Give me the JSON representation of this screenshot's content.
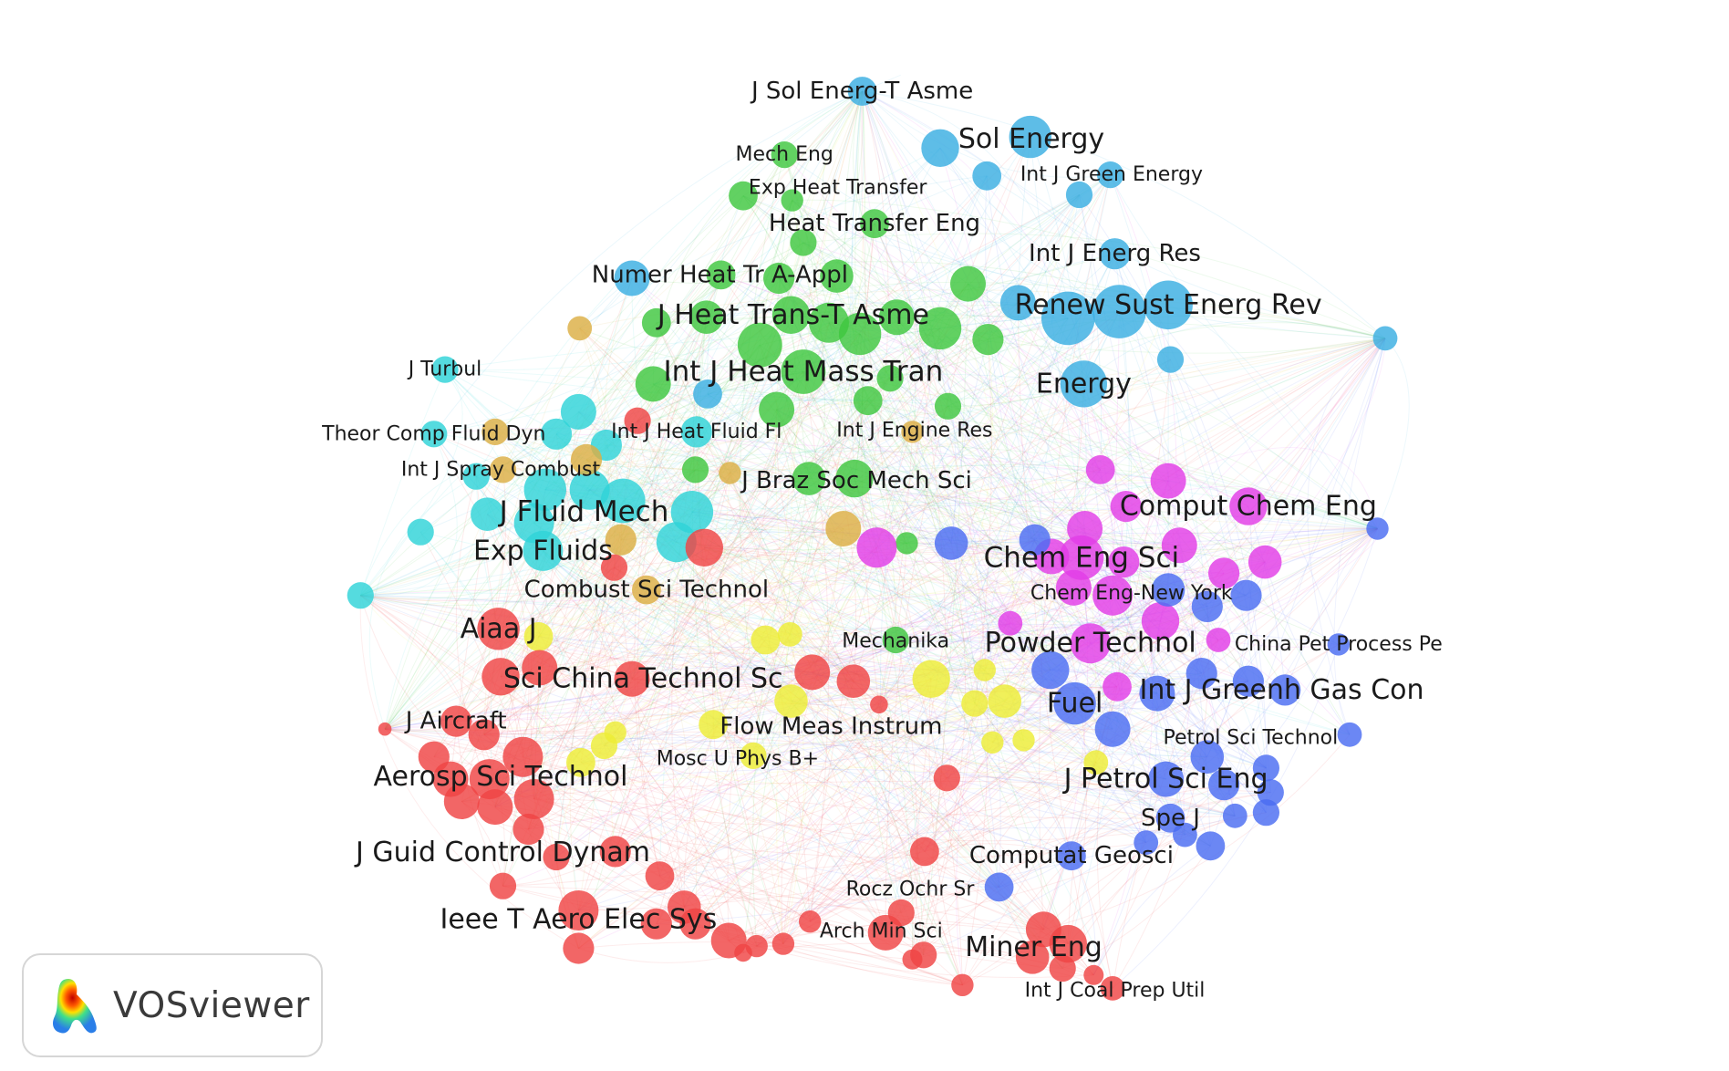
{
  "legend": {
    "brand": "VOSviewer"
  },
  "cluster_colors": {
    "red": "#ef4444",
    "green": "#3fc73f",
    "blue": "#4a6cf2",
    "yellow": "#eded36",
    "magenta": "#e23de6",
    "cyan": "#2fd3d8",
    "orange": "#dcae44",
    "lightblue": "#3aaee2"
  },
  "labels": [
    {
      "id": "j-sol-energ",
      "text": "J Sol Energ-T Asme",
      "cluster": "lightblue",
      "size": "md"
    },
    {
      "id": "sol-energy",
      "text": "Sol Energy",
      "cluster": "lightblue",
      "size": "lg"
    },
    {
      "id": "mech-eng",
      "text": "Mech Eng",
      "cluster": "green",
      "size": "sm"
    },
    {
      "id": "exp-heat-transfer",
      "text": "Exp Heat Transfer",
      "cluster": "green",
      "size": "sm"
    },
    {
      "id": "int-j-green-energy",
      "text": "Int J Green Energy",
      "cluster": "lightblue",
      "size": "sm"
    },
    {
      "id": "heat-transfer-eng",
      "text": "Heat Transfer Eng",
      "cluster": "green",
      "size": "md"
    },
    {
      "id": "int-j-energ-res",
      "text": "Int J Energ Res",
      "cluster": "lightblue",
      "size": "md"
    },
    {
      "id": "numer-heat-tr",
      "text": "Numer Heat Tr A-Appl",
      "cluster": "green",
      "size": "md"
    },
    {
      "id": "renew-sust",
      "text": "Renew Sust Energ Rev",
      "cluster": "lightblue",
      "size": "lg"
    },
    {
      "id": "j-heat-trans",
      "text": "J Heat Trans-T Asme",
      "cluster": "green",
      "size": "lg"
    },
    {
      "id": "j-turbul",
      "text": "J Turbul",
      "cluster": "cyan",
      "size": "sm"
    },
    {
      "id": "int-j-heat-mass",
      "text": "Int J Heat Mass Tran",
      "cluster": "green",
      "size": "xl"
    },
    {
      "id": "energy",
      "text": "Energy",
      "cluster": "lightblue",
      "size": "lg"
    },
    {
      "id": "theor-comp",
      "text": "Theor Comp Fluid Dyn",
      "cluster": "cyan",
      "size": "sm"
    },
    {
      "id": "int-j-heat-fluid",
      "text": "Int J Heat Fluid Fl",
      "cluster": "cyan",
      "size": "sm"
    },
    {
      "id": "int-j-engine",
      "text": "Int J Engine Res",
      "cluster": "orange",
      "size": "sm"
    },
    {
      "id": "int-j-spray",
      "text": "Int J Spray Combust",
      "cluster": "orange",
      "size": "sm"
    },
    {
      "id": "j-braz",
      "text": "J Braz Soc Mech Sci",
      "cluster": "green",
      "size": "md"
    },
    {
      "id": "comput-chem",
      "text": "Comput Chem Eng",
      "cluster": "magenta",
      "size": "lg"
    },
    {
      "id": "j-fluid-mech",
      "text": "J Fluid Mech",
      "cluster": "cyan",
      "size": "xl"
    },
    {
      "id": "exp-fluids",
      "text": "Exp Fluids",
      "cluster": "cyan",
      "size": "lg"
    },
    {
      "id": "chem-eng-sci",
      "text": "Chem Eng Sci",
      "cluster": "magenta",
      "size": "xl"
    },
    {
      "id": "combust-sci",
      "text": "Combust Sci Technol",
      "cluster": "orange",
      "size": "md"
    },
    {
      "id": "chem-eng-ny",
      "text": "Chem Eng-New York",
      "cluster": "magenta",
      "size": "sm"
    },
    {
      "id": "aiaa-j",
      "text": "Aiaa J",
      "cluster": "red",
      "size": "lg"
    },
    {
      "id": "mechanika",
      "text": "Mechanika",
      "cluster": "green",
      "size": "sm"
    },
    {
      "id": "powder-technol",
      "text": "Powder Technol",
      "cluster": "magenta",
      "size": "lg"
    },
    {
      "id": "china-pet",
      "text": "China Pet Process Pe",
      "cluster": "blue",
      "size": "sm"
    },
    {
      "id": "sci-china",
      "text": "Sci China Technol Sc",
      "cluster": "red",
      "size": "lg"
    },
    {
      "id": "int-j-greenh",
      "text": "Int J Greenh Gas Con",
      "cluster": "blue",
      "size": "lg"
    },
    {
      "id": "fuel",
      "text": "Fuel",
      "cluster": "blue",
      "size": "lg"
    },
    {
      "id": "j-aircraft",
      "text": "J Aircraft",
      "cluster": "red",
      "size": "md"
    },
    {
      "id": "flow-meas",
      "text": "Flow Meas Instrum",
      "cluster": "yellow",
      "size": "md"
    },
    {
      "id": "petrol-sci",
      "text": "Petrol Sci Technol",
      "cluster": "blue",
      "size": "sm"
    },
    {
      "id": "mosc-u",
      "text": "Mosc U Phys B+",
      "cluster": "yellow",
      "size": "sm"
    },
    {
      "id": "aerosp-sci",
      "text": "Aerosp Sci Technol",
      "cluster": "red",
      "size": "lg"
    },
    {
      "id": "j-petrol-sci",
      "text": "J Petrol Sci Eng",
      "cluster": "blue",
      "size": "lg"
    },
    {
      "id": "spe-j",
      "text": "Spe J",
      "cluster": "blue",
      "size": "md"
    },
    {
      "id": "j-guid",
      "text": "J Guid Control Dynam",
      "cluster": "red",
      "size": "lg"
    },
    {
      "id": "computat-geosci",
      "text": "Computat Geosci",
      "cluster": "blue",
      "size": "md"
    },
    {
      "id": "rocz-ochr",
      "text": "Rocz Ochr Sr",
      "cluster": "red",
      "size": "sm"
    },
    {
      "id": "ieee-t-aero",
      "text": "Ieee T Aero Elec Sys",
      "cluster": "red",
      "size": "lg"
    },
    {
      "id": "arch-min",
      "text": "Arch Min Sci",
      "cluster": "red",
      "size": "sm"
    },
    {
      "id": "miner-eng",
      "text": "Miner Eng",
      "cluster": "red",
      "size": "lg"
    },
    {
      "id": "int-j-coal",
      "text": "Int J Coal Prep Util",
      "cluster": "red",
      "size": "sm"
    }
  ]
}
